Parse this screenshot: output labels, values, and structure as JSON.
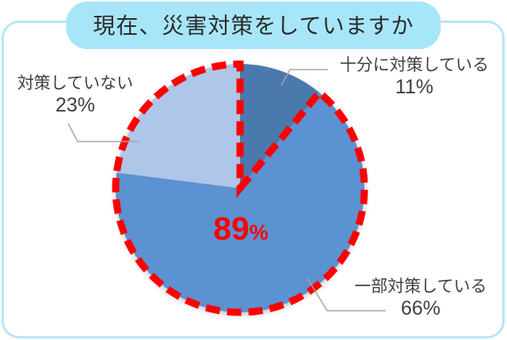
{
  "title": {
    "text": "現在、災害対策をしていますか"
  },
  "chart_data": {
    "type": "pie",
    "title": "現在、災害対策をしていますか",
    "start_angle_deg": 0,
    "direction": "clockwise",
    "slices": [
      {
        "label": "十分に対策している",
        "value": 11,
        "color": "#4a79ad"
      },
      {
        "label": "一部対策している",
        "value": 66,
        "color": "#5b92d2"
      },
      {
        "label": "対策していない",
        "value": 23,
        "color": "#aec6e8"
      }
    ],
    "highlight": {
      "slice_indexes": [
        1,
        2
      ],
      "total_label": "89%",
      "color": "#ff0000",
      "style": "dashed-outline"
    },
    "legend": "none",
    "callout_line_color": "#a6a6a6"
  },
  "callouts": {
    "sufficient": {
      "name": "十分に対策している",
      "pct": "11%"
    },
    "partial": {
      "name": "一部対策している",
      "pct": "66%"
    },
    "none": {
      "name": "対策していない",
      "pct": "23%"
    },
    "highlight": {
      "big": "89",
      "small": "%"
    }
  },
  "colors": {
    "frame_border": "#b7e6f7",
    "title_pill_bg": "#a7e6f9",
    "title_text": "#2b2b2b",
    "label_text": "#404040",
    "highlight_red": "#ff0000",
    "leader_gray": "#a6a6a6"
  }
}
